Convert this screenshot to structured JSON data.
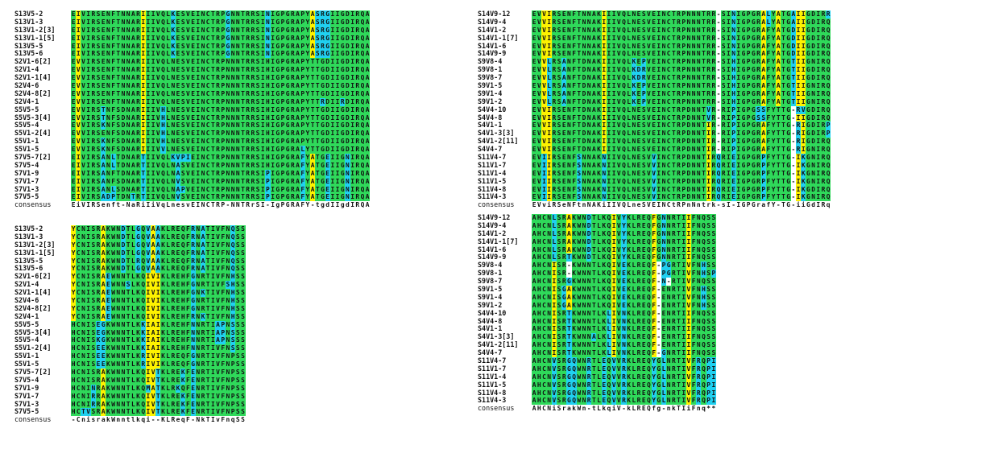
{
  "colors": {
    "G": "#2fd95a",
    "Y": "#fef200",
    "C": "#20d0f0",
    "W": "#ffffff",
    "K": "#1a1a1a",
    "B": "#1a1a8a"
  },
  "panels": [
    {
      "id": "top-left",
      "rows": [
        {
          "label": "S13V5-2",
          "seq": "EIVIRSENFTNNARIIIVQLKESVEINCTRPGNNTRRSINIGPGRAPYASRGIIGDIRQA"
        },
        {
          "label": "S13V1-3",
          "seq": "EIVIRSENFTNNARIIIVQLKESVEINCTRPGNNTRRSINIGPGRAPYASRGIIGDIRQA"
        },
        {
          "label": "S13V1-2[3]",
          "seq": "EIVIRSENFTNNARIIIVQLKESVEINCTRPGNNTRRSINIGPGRAPYASRGIIGDIRQA"
        },
        {
          "label": "S13V1-1[5]",
          "seq": "EIVIRSENFTNNARIIIVQLKESVEINCTRPGNNTRRSINIGPGRAPYASRGIIGDIRQA"
        },
        {
          "label": "S13V5-5",
          "seq": "EIVIRSENFTNNARIIIVQLKESVEINCTRPGNNTRRSINIGPGRAPYASRGIIGDIRQA"
        },
        {
          "label": "S13V5-6",
          "seq": "EIVIRSENFTNNARIIIVQLKESVEINCTRPGNNTRRSINIGPGRAPYASRGIIGDIRQA"
        },
        {
          "label": "S2V1-6[2]",
          "seq": "EVVIRSENFTNNARIIIVQLNESVEINCTRPNNNTRRSIHIGPGRAPYTTGDIIGDIRQA"
        },
        {
          "label": "S2V1-4",
          "seq": "EVVIRSENFTNNARIIIVQLNESVEINCTRPNNNTRRSIHIGPGRAPYTTGDIIGDIRQA"
        },
        {
          "label": "S2V1-1[4]",
          "seq": "EVVIRSENFTNNARIIIVQLNESVEINCTRPNNNTRRSIHIGPGRAPYTTGDIIGDIRQA"
        },
        {
          "label": "S2V4-6",
          "seq": "EVVIRSENFTNNARIIIVQLNESVEINCTRPNNNTRRSIHIGPGRAPYTTGDIIGDIRQA"
        },
        {
          "label": "S2V4-8[2]",
          "seq": "EVVIRSENFTNNARIIIVQLNESVEINCTRPNNNTRRSIHIGPGRAPYTTGDIIGDIRQA"
        },
        {
          "label": "S2V4-1",
          "seq": "EVVIRSENFTNNARIIIVQLNESVEINCTRPNNNTRRSIHIGPGRAPYTTRDIIRDIRQA"
        },
        {
          "label": "S5V5-5",
          "seq": "EVVIRSTNFSDNARIIIVHLNESVEINCTRPNNNTRRSIHIGPGRAPYTTGDIIGDIRQA"
        },
        {
          "label": "S5V5-3[4]",
          "seq": "EVVIRSTNFSDNARIIIVHLNESVEINCTRPNNNTRRSIHIGPGRAPYTTGDIIGDIRQA"
        },
        {
          "label": "S5V5-4",
          "seq": "EVVIRSKNFSDNARIIIVHLNESVEINCTRPNNNTRRSIHIGPGRAPYTTGDIIGDIRQA"
        },
        {
          "label": "S5V1-2[4]",
          "seq": "EVVIRSENFSDNARIIIVHLNESVEINCTRPNNNTRRSIHIGPGRAPYTTGDIIGDIRQA"
        },
        {
          "label": "S5V1-1",
          "seq": "EVVIRSKNFSDNARIIIVHLNESVEINCTRPNNNTRRSIHIGPGRAPYTTGDIIGDIRQA"
        },
        {
          "label": "S5V1-5",
          "seq": "EVVIRSKNFSDNARIIIVVLNESVEINCTRPNNNTRRSIHIGPGRALYTTGDIIGDIRQA"
        },
        {
          "label": "S7V5-7[2]",
          "seq": "EIVIRSANLTDNARTIIVQLKVPIEINCTRPNNNTRRSIHIGPGRAFYATGEIIGNIRQA"
        },
        {
          "label": "S7V5-4",
          "seq": "EIVIRSANLTDNARTIIVQLNASVEINCTRPNNNTRRSIHIGPGRAFYATGEIIGNIRQA"
        },
        {
          "label": "S7V1-9",
          "seq": "EIVIRSANFTDNARTIIVQLNASVEINCTRPNNNTRRSIPIGPGRAFYATGEIIGNIRQA"
        },
        {
          "label": "S7V1-7",
          "seq": "EIVIRSANFSDNARTIIVQLNVSVEINCTRPNNNTRRSIPIGPGRAFYATGEIIGNIRQA"
        },
        {
          "label": "S7V1-3",
          "seq": "EIVIRSANLSDNARTIIVQLNAPVEINCTRPNNNTRRSIPIGPGRAFYATGEIIGNIRQA"
        },
        {
          "label": "S7V5-5",
          "seq": "EIVIRSADPTDNTRTIIVQLNVSVEINCTRPNNNTRRSIPIGPGRAFYATGEIIGNIRQA"
        }
      ],
      "consensus": {
        "label": "consensus",
        "seq": "EiVIRSenft-NaRiIiVqLnesvEINCTRP-NNTRrSI-IgPGRAFY-tgdIIgdIRQA"
      }
    },
    {
      "id": "top-right",
      "rows": [
        {
          "label": "S14V9-12",
          "seq": "EVVIRSENFTNNAKIIIVQLNESVEINCTRPNNNTRR-SINIGPGRALYATGAIIGDIRR"
        },
        {
          "label": "S14V9-4",
          "seq": "EVVIRSENFTNNAKIIIVQLNESVEINCTRPNNNTRR-SINIGPGRALYATGAIIGDIRQ"
        },
        {
          "label": "S14V1-2",
          "seq": "EVVIRSENFTNNAKIIIVQLNESVEINCTRPNNNTRR-SINIGPGRAFYATGDIIGDIRQ"
        },
        {
          "label": "S14V1-1[7]",
          "seq": "EVVIRSENFTNNAKIIIVQLNESVEINCTRPNNNTRR-SINIGPGRAFYATGDIIGDIRQ"
        },
        {
          "label": "S14V1-6",
          "seq": "EVVIRSENFTNNAKIIIVQLNESVEINCTRPNNNTRR-SINIGPGRAFYATGDIIGDIRQ"
        },
        {
          "label": "S14V9-9",
          "seq": "EVVIRSENFTNNAKIIIVQLNESVEINCTRPNNNTRR-SINIGPGRAFYATGDIIGDIRQ"
        },
        {
          "label": "S9V8-4",
          "seq": "EVVLRSANFTDNAKIIIVQLKEPVEINCTRPNNNTRR-SIHIGPGRAFYATGTIIGNIRQ"
        },
        {
          "label": "S9V8-1",
          "seq": "EVVLRSANFTDNAKIIIVQLKDRVEINCTRPNNNTRR-SIHIGPGRAFYATGTIIGDIRQ"
        },
        {
          "label": "S9V8-7",
          "seq": "EVVLRSANFTDNAKIIIVQLKDRVEINCTRPNNNTRR-SIHIGPGRAFYATGTIIGDIRQ"
        },
        {
          "label": "S9V1-5",
          "seq": "EVVLRSANFTDNAKIIIVQLKEPVEINCTRPNNNTRR-SIHIGPGRAFYATGTIIGNIRQ"
        },
        {
          "label": "S9V1-4",
          "seq": "EVVLRSANFTDNAKIIIVQLKEPVEINCTRPNNNTRR-SIHIGPGRAFYATGTIIGNIRQ"
        },
        {
          "label": "S9V1-2",
          "seq": "EVVLRSANFTDNAKIIIVQLKEPVEINCTRPNNNTRR-SIHIGPGRAFYATGTIIGNIRQ"
        },
        {
          "label": "S4V4-10",
          "seq": "EVVIRSENFTDNAKIIIVQLNESVEINCTRPDNNTVR-RIPIGPGSSFYTTG-RVGDIRQ"
        },
        {
          "label": "S4V4-8",
          "seq": "EVVIRSENFTDNAKIIIVQLNESVEINCTRPDNNTVR-RIPIGPGSSFYTTG-IIGDIRQ"
        },
        {
          "label": "S4V1-1",
          "seq": "EVVIRSENFTDNAKIIIVQLNESVEINCTRPDNNTIR-RIPIGPGRAFYTTG-RIGDIRP"
        },
        {
          "label": "S4V1-3[3]",
          "seq": "EVVIRSENFTDNAKIIIVQLNESVEINCTRPDNNTIR-RIPIGPGRAFYTTG-RIGDIRP"
        },
        {
          "label": "S4V1-2[11]",
          "seq": "EVVIRSENFTDNAKIIIVQLNESVEINCTRPDNNTIR-RIPIGPGRAFYTTG-RIGDIRQ"
        },
        {
          "label": "S4V4-7",
          "seq": "EVVIRSENFTDNAKIIIVQLNESVEINCTRPDNNTIR-RIPIGPGRAFYTTG-RIGNIRQ"
        },
        {
          "label": "S11V4-7",
          "seq": "EVIIRSENFSNNAKNIIVQLNESVVINCTRPDNNTIRQRIEIGPGRPFYTTG-IKGNIRQ"
        },
        {
          "label": "S11V1-7",
          "seq": "EVIIRSENFSNNAKNIIVQLNESVVINCTRPDNNTIRQRIEIGPGRPFYTTG-IKGNIRQ"
        },
        {
          "label": "S11V1-4",
          "seq": "EVIIRSENFSNNAKNIIVQLNESVVINCTRPDNNTIRQRIEIGPGRPFYTTG-IKGNIRQ"
        },
        {
          "label": "S11V1-5",
          "seq": "EVIIRSENFSNNAKNIIVQLNESVVINCTRPDNNTIRQRIEIGPGRPFYTTG-IKGNIRQ"
        },
        {
          "label": "S11V4-8",
          "seq": "EVIIRSENFSNNAKNIIVQLNESVVINCTRPDNNTIRQRIEIGPGRPFYTTG-IKGDIRQ"
        },
        {
          "label": "S11V4-3",
          "seq": "EVIIRSENFSNNAKNIIVQLNESVVINCTRPDNNTIRQRIEIGPGRPFYTTG-IKGNIRQ"
        }
      ],
      "consensus": {
        "label": "consensus",
        "seq": "EVviRSeNFtnNAKiIIVQLneSVEINCtRPnNntrk-sI-IGPGrafY-TG-iiGdIRq"
      }
    },
    {
      "id": "bottom-left",
      "rows": [
        {
          "label": "S13V5-2",
          "seq": "YCNISRAKWNDTLGQVAAKLREQFRNATIVFNQSS"
        },
        {
          "label": "S13V1-3",
          "seq": "YCNISRAKWNDTLGQVAAKLREQFRNATIVFNQSS"
        },
        {
          "label": "S13V1-2[3]",
          "seq": "YCNISRAKWNDTLGQVAAKLREQFRNATIVFNQSS"
        },
        {
          "label": "S13V1-1[5]",
          "seq": "YCNISRAKWNDTLGQVAAKLREQFRNATIVFNQSS"
        },
        {
          "label": "S13V5-5",
          "seq": "YCNISRAKWNDTLRQVAAKLREQFRNATIVFNQSS"
        },
        {
          "label": "S13V5-6",
          "seq": "YCNISRAKWNDTLGQVAAKLREQFRNATIVFNQSS"
        },
        {
          "label": "S2V1-6[2]",
          "seq": "YCNISRAEWNNTLKQIVIKLREHFGNRTIVFNHSS"
        },
        {
          "label": "S2V1-4",
          "seq": "YCNISRAEWNNSLKQIVIKLREHFGNRTIVFSHSS"
        },
        {
          "label": "S2V1-1[4]",
          "seq": "YCNISRAEWNNTLKQIVIKLREHFGNKTIVFNHSS"
        },
        {
          "label": "S2V4-6",
          "seq": "YCNISRAEWNNTLKQIVIKLREHFGNRTIVFNHSS"
        },
        {
          "label": "S2V4-8[2]",
          "seq": "YCNISRAEWNNTLKQIVIKLREHFGNRTIVFNHSS"
        },
        {
          "label": "S2V4-1",
          "seq": "YCNISRAEWNNTLKQIVIKLREHFRNKTIVFNHSS"
        },
        {
          "label": "S5V5-5",
          "seq": "HCNISEGKWNNTLKKIAIKLREHFNNRTIAPNSSS"
        },
        {
          "label": "S5V5-3[4]",
          "seq": "HCNISEGKWNNTLKKIAIKLREHFNNRTIAPNSSS"
        },
        {
          "label": "S5V5-4",
          "seq": "HCNISKGKWNNTLKKIAIKLREHFNNRTIAPNSSS"
        },
        {
          "label": "S5V1-2[4]",
          "seq": "HCNISEEKWNNTLKKIAIKLREHFNNRTIVFNSSS"
        },
        {
          "label": "S5V1-1",
          "seq": "HCNISEEKWNNTLKRIVIKLREQFGNRTIVFNPSS"
        },
        {
          "label": "S5V1-5",
          "seq": "HCNISEEKWNNTLKRIVIKLREQFGNRTIVFNPSS"
        },
        {
          "label": "S7V5-7[2]",
          "seq": "HCNISRAKWNNTLKQIVTKLREKFENRTIVFNPSS"
        },
        {
          "label": "S7V5-4",
          "seq": "HCNISRAKWNNTLKQIVTKLREKFENRTIVFNPSS"
        },
        {
          "label": "S7V1-9",
          "seq": "HCNINRAKWNNTLKQMATKLRKQFENRTIVFNPSS"
        },
        {
          "label": "S7V1-7",
          "seq": "HCNIRRAKWNNTLKQIVTKLREKFENRTIVFNPSS"
        },
        {
          "label": "S7V1-3",
          "seq": "HCNIRRAKWNNTLKQIVTKLREKFENRTIVFNPSS"
        },
        {
          "label": "S7V5-5",
          "seq": "HCTVSRAKWNNTLKQIVTKLREKFENRTIVFNPSS"
        }
      ],
      "consensus": {
        "label": "consensus",
        "seq": "-CnisrakWnntlkqi--KLReqF-NkTIvFnqSS"
      }
    },
    {
      "id": "bottom-right",
      "rows": [
        {
          "label": "S14V9-12",
          "seq": "AHCNLSRAKWNDTLKQIVYKLREQFGNNRTIIFNQSS"
        },
        {
          "label": "S14V9-4",
          "seq": "AHCNLSRAKWNDTLKQIVYKLREQFGNNRTIIFNQSS"
        },
        {
          "label": "S14V1-2",
          "seq": "AHCNLSRAKWNDTLKQIVYKLREQFGNNRTIIFNQSS"
        },
        {
          "label": "S14V1-1[7]",
          "seq": "AHCNLSRAKWNDTLKQIVYKLREQFGNNRTIIFNQSS"
        },
        {
          "label": "S14V1-6",
          "seq": "AHCNLSRAKWNDTLKQIVYKLREQFGNNRTIIFNQSS"
        },
        {
          "label": "S14V9-9",
          "seq": "AHCNLSRTKWNDTLKQIVYKLREQFGNNRTIIFNQSS"
        },
        {
          "label": "S9V8-4",
          "seq": "AHCNISR-KWNNTLKQIVEKLREQF-PGRTIVFNHSS"
        },
        {
          "label": "S9V8-1",
          "seq": "AHCNISR-KWNNTLKQIVEKLREQF-PGRTIVFNHSP"
        },
        {
          "label": "S9V8-7",
          "seq": "AHCNISRGKWNNTLKQIVEKLREQF-N-RTIVFNQSS"
        },
        {
          "label": "S9V1-5",
          "seq": "AHCNISGAKWNNTLKQIVEKLREQF-ENRTIVFNHSS"
        },
        {
          "label": "S9V1-4",
          "seq": "AHCNISGAKWNNTLKQIVEKLREQF-ENRTIVFNHSS"
        },
        {
          "label": "S9V1-2",
          "seq": "AHCNISGAKWNNTLKQIVEKLREQF-ENRTIVFNHSS"
        },
        {
          "label": "S4V4-10",
          "seq": "AHCNISRTKWNNTLKLIVNKLREQF-ENRTIIFNQSS"
        },
        {
          "label": "S4V4-8",
          "seq": "AHCNISRTKWNNTLKLIVNKLREQF-ENRTIIFNQSS"
        },
        {
          "label": "S4V1-1",
          "seq": "AHCNISRTKWNNTLKLIVNKLREQF-ENRTIIFNQSS"
        },
        {
          "label": "S4V1-3[3]",
          "seq": "AHCNISRTKWNNALKLIVNKLREQF-ENRTIIFNQSS"
        },
        {
          "label": "S4V1-2[11]",
          "seq": "AHCNISRTKWNNTLKLIVNKLREQF-ENRTIIFNQSS"
        },
        {
          "label": "S4V4-7",
          "seq": "AHCNISRTKWNNTLKLIVNKLREQF-GNRTIIFNQSS"
        },
        {
          "label": "S11V4-7",
          "seq": "AHCNVSRGQWNRTLEQVVRKLREQYGLNRTIVFRQPI"
        },
        {
          "label": "S11V1-7",
          "seq": "AHCNVSRGQWNRTLEQVVRKLREQYGLNRTIVFRQPI"
        },
        {
          "label": "S11V1-4",
          "seq": "AHCNVSRGQWNRTLEQVVRKLREQYGLNRTIVFRQPI"
        },
        {
          "label": "S11V1-5",
          "seq": "AHCNVSRGQWNRTLEQVVRKLREQYGLNRTIVFRQPI"
        },
        {
          "label": "S11V4-8",
          "seq": "AHCNVSRGQWNRTLEQVVRKLREQYGLNRTIVFRQPI"
        },
        {
          "label": "S11V4-3",
          "seq": "AHCNVSRGQWNRTLEQVVRKLREQYGLNRTIVFRQPI"
        }
      ],
      "consensus": {
        "label": "consensus",
        "seq": "AHCNiSrakWn-tLkqiV-kLREQfg-nkTIiFnq**"
      }
    }
  ]
}
